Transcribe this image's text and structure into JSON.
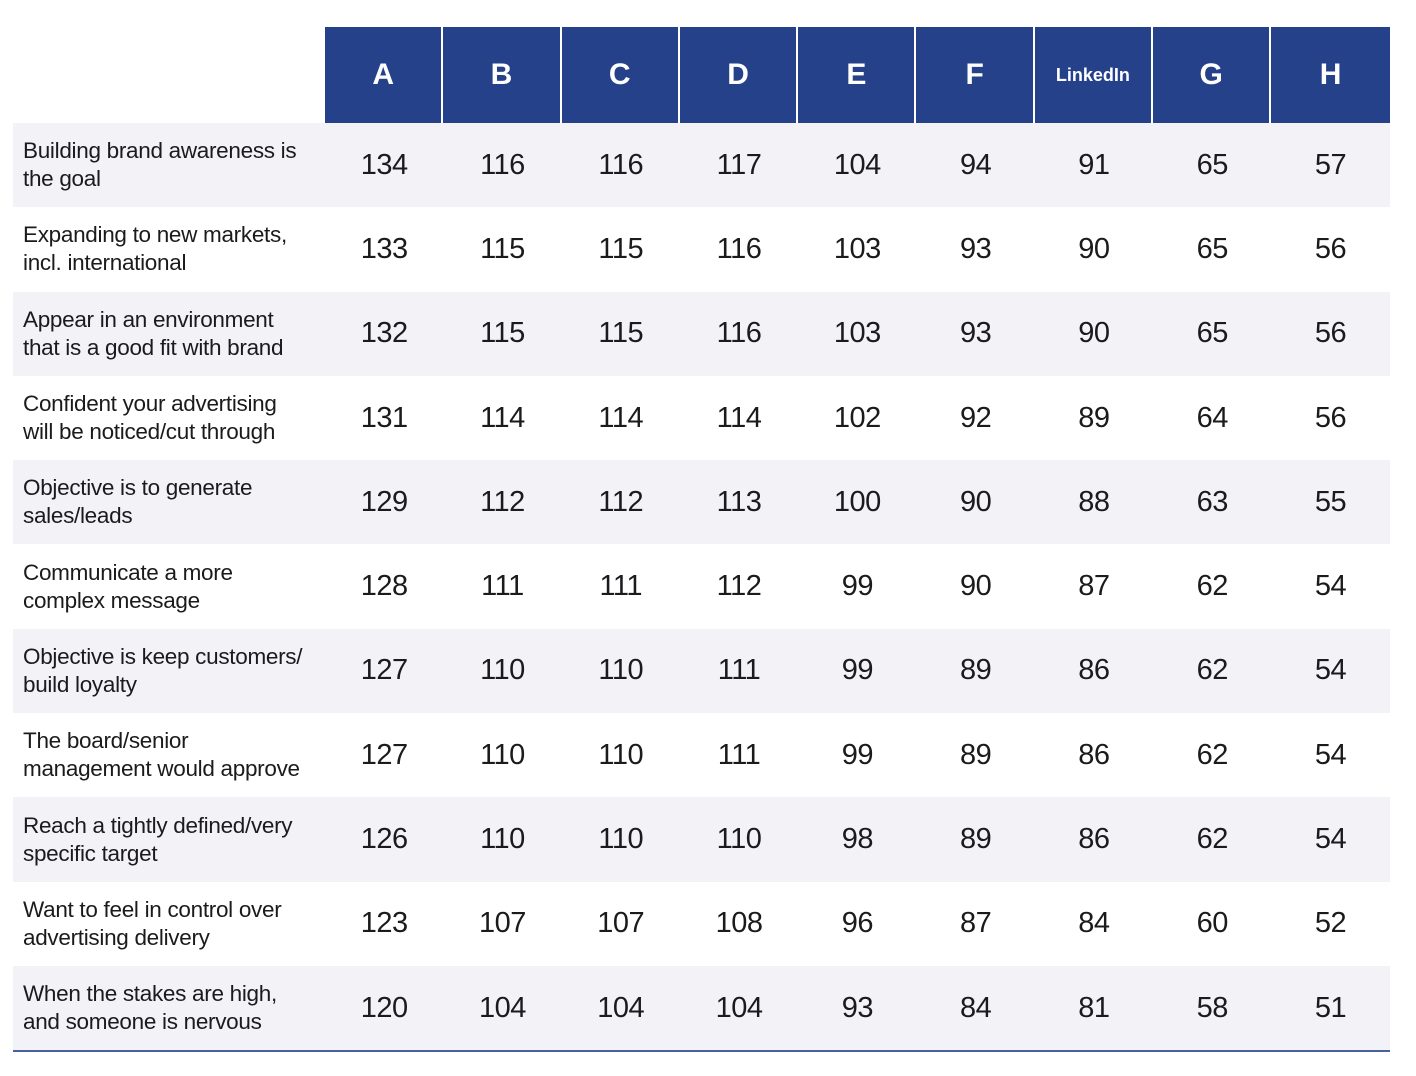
{
  "colors": {
    "header_bg": "#24418a",
    "header_text": "#ffffff",
    "row_alt_bg": "#f2f2f7",
    "body_text": "#1b1b1d",
    "bottom_border": "#47629e"
  },
  "chart_data": {
    "type": "table",
    "title": "",
    "columns": [
      "A",
      "B",
      "C",
      "D",
      "E",
      "F",
      "LinkedIn",
      "G",
      "H"
    ],
    "rows": [
      {
        "label": "Building brand awareness is\nthe goal",
        "values": [
          134,
          116,
          116,
          117,
          104,
          94,
          91,
          65,
          57
        ]
      },
      {
        "label": "Expanding to new markets,\nincl. international",
        "values": [
          133,
          115,
          115,
          116,
          103,
          93,
          90,
          65,
          56
        ]
      },
      {
        "label": "Appear in an environment\nthat is a good fit with brand",
        "values": [
          132,
          115,
          115,
          116,
          103,
          93,
          90,
          65,
          56
        ]
      },
      {
        "label": "Confident your advertising\nwill be noticed/cut through",
        "values": [
          131,
          114,
          114,
          114,
          102,
          92,
          89,
          64,
          56
        ]
      },
      {
        "label": "Objective is to generate\nsales/leads",
        "values": [
          129,
          112,
          112,
          113,
          100,
          90,
          88,
          63,
          55
        ]
      },
      {
        "label": "Communicate a more\ncomplex message",
        "values": [
          128,
          111,
          111,
          112,
          99,
          90,
          87,
          62,
          54
        ]
      },
      {
        "label": "Objective is keep customers/\nbuild loyalty",
        "values": [
          127,
          110,
          110,
          111,
          99,
          89,
          86,
          62,
          54
        ]
      },
      {
        "label": "The board/senior\nmanagement would approve",
        "values": [
          127,
          110,
          110,
          111,
          99,
          89,
          86,
          62,
          54
        ]
      },
      {
        "label": "Reach a tightly defined/very\nspecific target",
        "values": [
          126,
          110,
          110,
          110,
          98,
          89,
          86,
          62,
          54
        ]
      },
      {
        "label": "Want to feel in control over\nadvertising delivery",
        "values": [
          123,
          107,
          107,
          108,
          96,
          87,
          84,
          60,
          52
        ]
      },
      {
        "label": "When the stakes are high,\nand someone is nervous",
        "values": [
          120,
          104,
          104,
          104,
          93,
          84,
          81,
          58,
          51
        ]
      }
    ]
  }
}
